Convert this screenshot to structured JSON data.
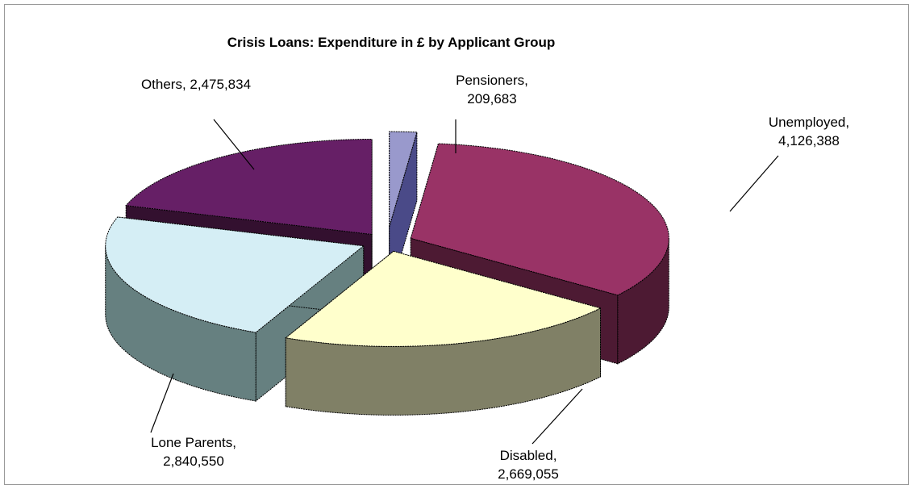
{
  "chart_data": {
    "type": "pie",
    "title": "Crisis Loans: Expenditure in £ by Applicant Group",
    "values": [
      209683,
      4126388,
      2669055,
      2840550,
      2475834
    ],
    "value_labels": [
      "Pensioners, 209,683",
      "Unemployed, 4,126,388",
      "Disabled, 2,669,055",
      "Lone Parents, 2,840,550",
      "Others, 2,475,834"
    ],
    "colors": [
      "#9999cc",
      "#993366",
      "#ffffcc",
      "#d5eef5",
      "#661f66"
    ],
    "side_colors": [
      "#4a4a88",
      "#4d1a33",
      "#808066",
      "#668080",
      "#33102f"
    ]
  }
}
